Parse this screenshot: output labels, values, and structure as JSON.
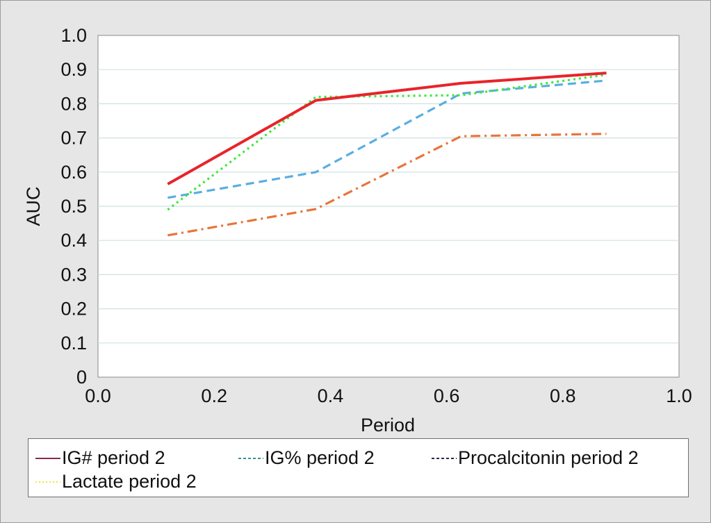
{
  "chart_data": {
    "type": "line",
    "title": "",
    "xlabel": "Period",
    "ylabel": "AUC",
    "xlim": [
      0.0,
      1.0
    ],
    "ylim": [
      0,
      1.0
    ],
    "x_ticks": [
      "0.0",
      "0.2",
      "0.4",
      "0.6",
      "0.8",
      "1.0"
    ],
    "y_ticks": [
      "0",
      "0.1",
      "0.2",
      "0.3",
      "0.4",
      "0.5",
      "0.6",
      "0.7",
      "0.8",
      "0.9",
      "1.0"
    ],
    "grid": "horizontal",
    "legend_position": "bottom",
    "x": [
      0.12,
      0.375,
      0.625,
      0.875
    ],
    "series": [
      {
        "key": "ig_num",
        "color": "#e8242a",
        "dash": "solid",
        "values": [
          0.565,
          0.81,
          0.86,
          0.89
        ]
      },
      {
        "key": "ig_pct",
        "color": "#5aaee0",
        "dash": "dashed",
        "values": [
          0.525,
          0.6,
          0.83,
          0.868
        ]
      },
      {
        "key": "procalcitonin",
        "color": "#e8743a",
        "dash": "dashdot",
        "values": [
          0.415,
          0.492,
          0.705,
          0.712
        ]
      },
      {
        "key": "lactate",
        "color": "#3ee83e",
        "dash": "dotted",
        "values": [
          0.49,
          0.82,
          0.825,
          0.885
        ]
      }
    ]
  },
  "legend": {
    "items": [
      {
        "label": "IG# period 2",
        "color": "#8b2a4a",
        "dash": "solid"
      },
      {
        "label": "IG% period 2",
        "color": "#3f8f8f",
        "dash": "dashed"
      },
      {
        "label": "Procalcitonin period 2",
        "color": "#2a2a4a",
        "dash": "dashed"
      },
      {
        "label": "Lactate period 2",
        "color": "#e8e838",
        "dash": "dotted"
      }
    ]
  }
}
